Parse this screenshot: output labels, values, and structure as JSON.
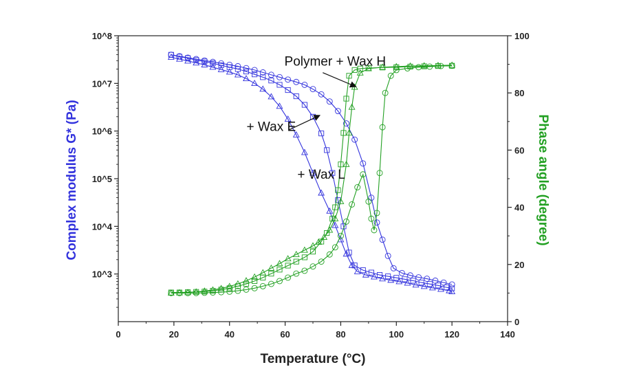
{
  "chart_data": {
    "type": "line",
    "xlabel": "Temperature (°C)",
    "ylabel_left": "Complex modulus G* (Pa)",
    "ylabel_right": "Phase angle (degree)",
    "xlim": [
      0,
      140
    ],
    "x_ticks": [
      0,
      20,
      40,
      60,
      80,
      100,
      120,
      140
    ],
    "y_left_scale": "log",
    "y_left_lim_exp": [
      2,
      8
    ],
    "y_left_ticks": [
      {
        "exp": 3,
        "label": "10^3"
      },
      {
        "exp": 4,
        "label": "10^4"
      },
      {
        "exp": 5,
        "label": "10^5"
      },
      {
        "exp": 6,
        "label": "10^6"
      },
      {
        "exp": 7,
        "label": "10^7"
      },
      {
        "exp": 8,
        "label": "10^8"
      }
    ],
    "y_right_lim": [
      0,
      100
    ],
    "y_right_ticks": [
      0,
      20,
      40,
      60,
      80,
      100
    ],
    "grid": false,
    "colors": {
      "modulus": "#3333dd",
      "phase": "#22a022",
      "axis": "#222222"
    },
    "annotations": [
      {
        "label": "Polymer + Wax H",
        "x": 78,
        "y_log": 7.37
      },
      {
        "label": "+ Wax E",
        "x": 55,
        "y_log": 6.0
      },
      {
        "label": "+ Wax L",
        "x": 73,
        "y_log": 5.0
      }
    ],
    "series": [
      {
        "axis": "left",
        "marker": "circle",
        "x": [
          19,
          22,
          25,
          28,
          31,
          34,
          37,
          40,
          43,
          46,
          49,
          52,
          55,
          58,
          61,
          64,
          67,
          70,
          73,
          76,
          79,
          82,
          85,
          88,
          91,
          93,
          95,
          97,
          99,
          102,
          105,
          108,
          111,
          114,
          117,
          120
        ],
        "values": [
          7.6,
          7.57,
          7.54,
          7.51,
          7.48,
          7.45,
          7.42,
          7.39,
          7.36,
          7.32,
          7.28,
          7.23,
          7.18,
          7.13,
          7.08,
          7.03,
          6.97,
          6.88,
          6.77,
          6.62,
          6.42,
          6.16,
          5.82,
          5.32,
          4.6,
          4.08,
          3.72,
          3.38,
          3.12,
          3.02,
          2.97,
          2.93,
          2.9,
          2.86,
          2.82,
          2.78
        ]
      },
      {
        "axis": "left",
        "marker": "square",
        "x": [
          19,
          22,
          25,
          28,
          31,
          34,
          37,
          40,
          43,
          46,
          49,
          52,
          55,
          58,
          61,
          64,
          67,
          70,
          73,
          75,
          77,
          79,
          81,
          83,
          85,
          88,
          91,
          94,
          97,
          100,
          103,
          106,
          109,
          112,
          115,
          118,
          120
        ],
        "values": [
          7.6,
          7.56,
          7.53,
          7.49,
          7.46,
          7.42,
          7.38,
          7.34,
          7.3,
          7.25,
          7.19,
          7.13,
          7.06,
          6.97,
          6.86,
          6.73,
          6.55,
          6.3,
          5.95,
          5.6,
          5.12,
          4.55,
          4.0,
          3.45,
          3.18,
          3.08,
          3.03,
          2.98,
          2.95,
          2.92,
          2.89,
          2.86,
          2.82,
          2.79,
          2.76,
          2.72,
          2.7
        ]
      },
      {
        "axis": "left",
        "marker": "triangle",
        "x": [
          19,
          22,
          25,
          28,
          31,
          34,
          37,
          40,
          43,
          46,
          49,
          52,
          55,
          58,
          61,
          64,
          67,
          70,
          73,
          76,
          78,
          80,
          82,
          84,
          86,
          89,
          92,
          95,
          98,
          101,
          104,
          107,
          110,
          113,
          116,
          119,
          120
        ],
        "values": [
          7.55,
          7.51,
          7.47,
          7.43,
          7.39,
          7.34,
          7.29,
          7.24,
          7.18,
          7.1,
          7.0,
          6.88,
          6.72,
          6.52,
          6.25,
          5.92,
          5.55,
          5.12,
          4.7,
          4.32,
          4.02,
          3.72,
          3.42,
          3.18,
          3.05,
          2.98,
          2.94,
          2.9,
          2.87,
          2.84,
          2.81,
          2.77,
          2.74,
          2.71,
          2.68,
          2.65,
          2.63
        ]
      },
      {
        "axis": "right",
        "marker": "circle",
        "x": [
          19,
          22,
          25,
          28,
          31,
          34,
          37,
          40,
          43,
          46,
          49,
          52,
          55,
          58,
          61,
          64,
          67,
          70,
          73,
          76,
          78,
          80,
          82,
          84,
          86,
          88,
          90,
          91,
          92,
          93,
          94,
          95,
          96,
          98,
          100,
          104,
          108,
          112,
          116,
          120
        ],
        "values": [
          10,
          10,
          10,
          10,
          10.1,
          10.2,
          10.3,
          10.5,
          10.8,
          11.2,
          11.7,
          12.4,
          13.2,
          14.2,
          15.4,
          16.8,
          17.8,
          19.3,
          21.0,
          23.5,
          26.0,
          30.0,
          35.0,
          41.0,
          47.0,
          51.5,
          42.0,
          36.0,
          32.0,
          38.0,
          52.0,
          68.0,
          80.0,
          86.0,
          88.0,
          88.6,
          89.0,
          89.2,
          89.4,
          89.5
        ]
      },
      {
        "axis": "right",
        "marker": "square",
        "x": [
          19,
          22,
          25,
          28,
          31,
          34,
          37,
          40,
          43,
          46,
          49,
          52,
          55,
          58,
          61,
          64,
          67,
          70,
          73,
          75,
          77,
          78,
          79,
          80,
          81,
          82,
          83,
          85,
          87,
          90,
          95,
          100,
          105,
          110,
          115,
          120
        ],
        "values": [
          10.2,
          10.2,
          10.3,
          10.4,
          10.5,
          10.8,
          11.2,
          11.7,
          12.4,
          13.2,
          14.2,
          15.4,
          16.8,
          18.2,
          19.6,
          21.0,
          22.5,
          24.5,
          28.0,
          31.0,
          36.0,
          40.0,
          46.0,
          55.0,
          66.0,
          78.0,
          86.0,
          88.0,
          88.5,
          88.7,
          88.9,
          89.0,
          89.2,
          89.3,
          89.4,
          89.5
        ]
      },
      {
        "axis": "right",
        "marker": "triangle",
        "x": [
          19,
          22,
          25,
          28,
          31,
          34,
          37,
          40,
          43,
          46,
          49,
          52,
          55,
          58,
          61,
          64,
          67,
          70,
          72,
          74,
          76,
          78,
          80,
          82,
          83,
          84,
          85,
          87,
          90,
          95,
          100,
          105,
          110,
          115,
          120
        ],
        "values": [
          10.0,
          10.1,
          10.2,
          10.4,
          10.7,
          11.1,
          11.6,
          12.3,
          13.2,
          14.3,
          15.6,
          17.1,
          18.7,
          20.3,
          22.0,
          23.5,
          25.0,
          26.5,
          27.8,
          29.5,
          32.0,
          36.0,
          42.0,
          55.0,
          66.0,
          75.0,
          82.0,
          87.0,
          88.5,
          89.0,
          89.2,
          89.4,
          89.5,
          89.6,
          89.7
        ]
      }
    ]
  }
}
